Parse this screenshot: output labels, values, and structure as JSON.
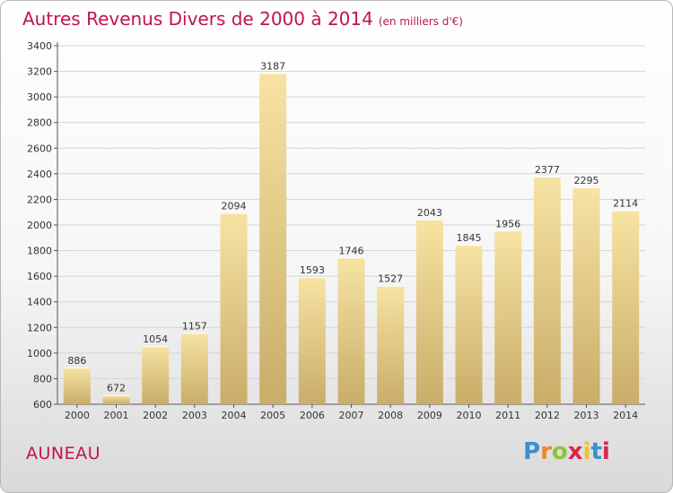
{
  "header": {
    "title": "Autres Revenus Divers de 2000 à 2014",
    "subtitle": "(en milliers d'€)"
  },
  "footer": {
    "town": "AUNEAU",
    "logo": [
      "P",
      "r",
      "o",
      "x",
      "i",
      "t",
      "i"
    ]
  },
  "colors": {
    "accent": "#c0144f",
    "bar_top": "#f7e3a3",
    "bar_bottom": "#c9ad69"
  },
  "chart_data": {
    "type": "bar",
    "title": "Autres Revenus Divers de 2000 à 2014",
    "xlabel": "",
    "ylabel": "",
    "ylim": [
      600,
      3400
    ],
    "yticks": [
      600,
      800,
      1000,
      1200,
      1400,
      1600,
      1800,
      2000,
      2200,
      2400,
      2600,
      2800,
      3000,
      3200,
      3400
    ],
    "grid": true,
    "categories": [
      "2000",
      "2001",
      "2002",
      "2003",
      "2004",
      "2005",
      "2006",
      "2007",
      "2008",
      "2009",
      "2010",
      "2011",
      "2012",
      "2013",
      "2014"
    ],
    "values": [
      886,
      672,
      1054,
      1157,
      2094,
      3187,
      1593,
      1746,
      1527,
      2043,
      1845,
      1956,
      2377,
      2295,
      2114
    ]
  }
}
